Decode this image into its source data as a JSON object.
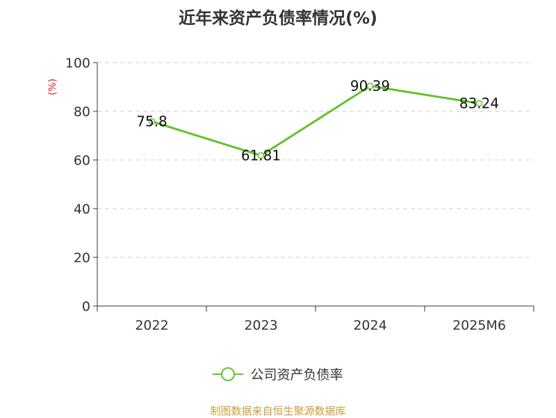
{
  "title": "近年来资产负债率情况(%)",
  "source": "制图数据来自恒生聚源数据库",
  "chart_data": {
    "type": "line",
    "title": "近年来资产负债率情况(%)",
    "ylabel": "(%)",
    "xlabel": "",
    "categories": [
      "2022",
      "2023",
      "2024",
      "2025M6"
    ],
    "series": [
      {
        "name": "公司资产负债率",
        "values": [
          75.8,
          61.81,
          90.39,
          83.24
        ],
        "color": "#5ec427"
      }
    ],
    "data_labels": [
      "75.8",
      "61.81",
      "90.39",
      "83.24"
    ],
    "ylim": [
      0,
      100
    ],
    "yticks": [
      0,
      20,
      40,
      60,
      80,
      100
    ],
    "grid": true,
    "legend_position": "bottom"
  },
  "colors": {
    "line": "#5ec427",
    "ylabel": "#e02020",
    "grid": "#cccccc",
    "axis": "#333333",
    "source": "#c8a03c"
  }
}
